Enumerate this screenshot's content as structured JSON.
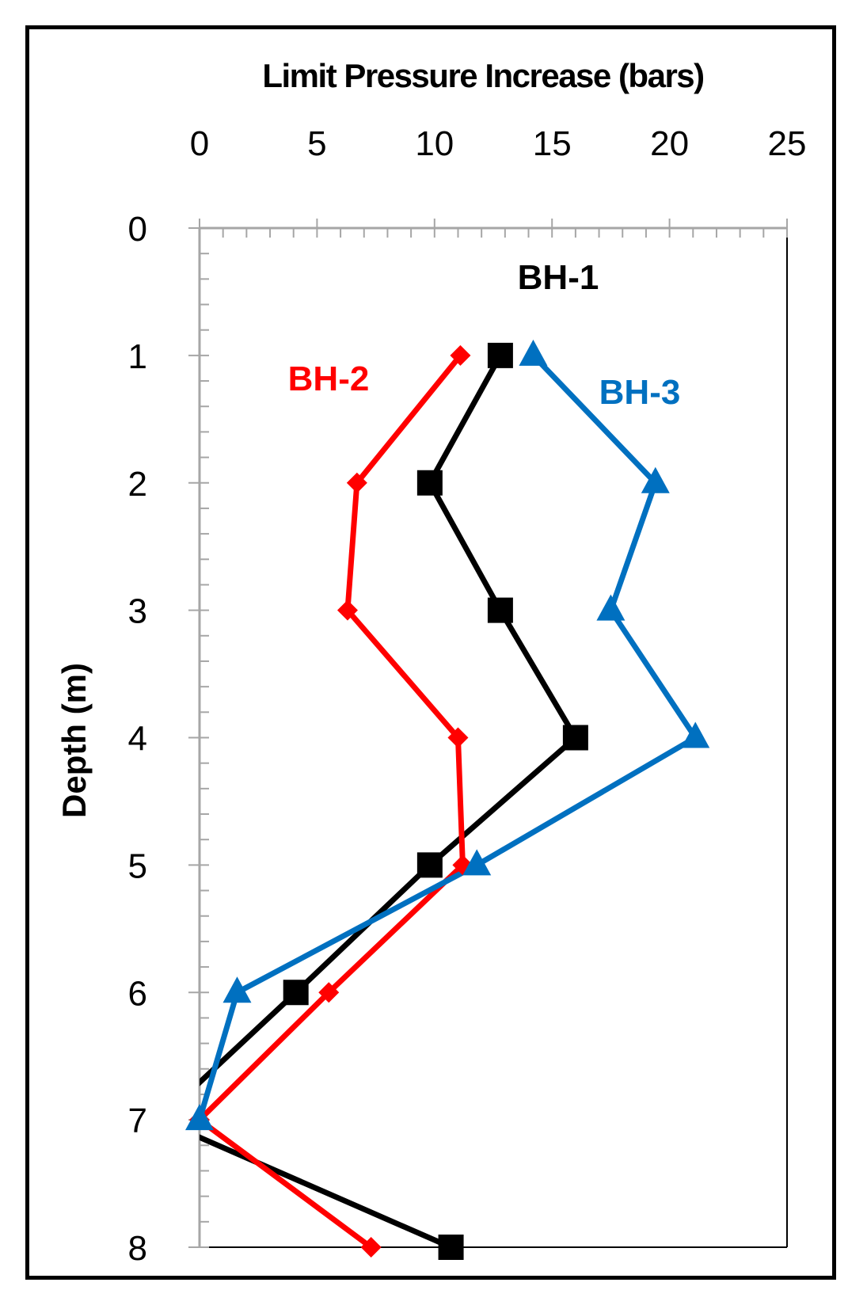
{
  "chart_data": {
    "type": "line",
    "xlabel": "Limit Pressure Increase (bars)",
    "ylabel": "Depth (m)",
    "xlim": [
      0,
      25
    ],
    "ylim": [
      0,
      8
    ],
    "x_ticks": [
      0,
      5,
      10,
      15,
      20,
      25
    ],
    "y_ticks": [
      0,
      1,
      2,
      3,
      4,
      5,
      6,
      7,
      8
    ],
    "x_axis_position": "top",
    "y_axis_inverted": true,
    "grid": false,
    "series": [
      {
        "name": "BH-1",
        "color": "#000000",
        "marker": "square",
        "points": [
          {
            "x": 12.8,
            "y": 1
          },
          {
            "x": 9.8,
            "y": 2
          },
          {
            "x": 12.8,
            "y": 3
          },
          {
            "x": 16.0,
            "y": 4
          },
          {
            "x": 9.8,
            "y": 5
          },
          {
            "x": 4.1,
            "y": 6
          },
          {
            "x": -1.7,
            "y": 7
          },
          {
            "x": 10.7,
            "y": 8
          }
        ]
      },
      {
        "name": "BH-2",
        "color": "#ff0000",
        "marker": "diamond",
        "points": [
          {
            "x": 11.1,
            "y": 1
          },
          {
            "x": 6.7,
            "y": 2
          },
          {
            "x": 6.3,
            "y": 3
          },
          {
            "x": 11.0,
            "y": 4
          },
          {
            "x": 11.2,
            "y": 5
          },
          {
            "x": 5.5,
            "y": 6
          },
          {
            "x": 0,
            "y": 7
          },
          {
            "x": 7.3,
            "y": 8
          }
        ]
      },
      {
        "name": "BH-3",
        "color": "#0070c0",
        "marker": "triangle",
        "points": [
          {
            "x": 14.2,
            "y": 1
          },
          {
            "x": 19.4,
            "y": 2
          },
          {
            "x": 17.5,
            "y": 3
          },
          {
            "x": 21.1,
            "y": 4
          },
          {
            "x": 11.8,
            "y": 5
          },
          {
            "x": 1.6,
            "y": 6
          },
          {
            "x": 0,
            "y": 7
          }
        ]
      }
    ]
  }
}
